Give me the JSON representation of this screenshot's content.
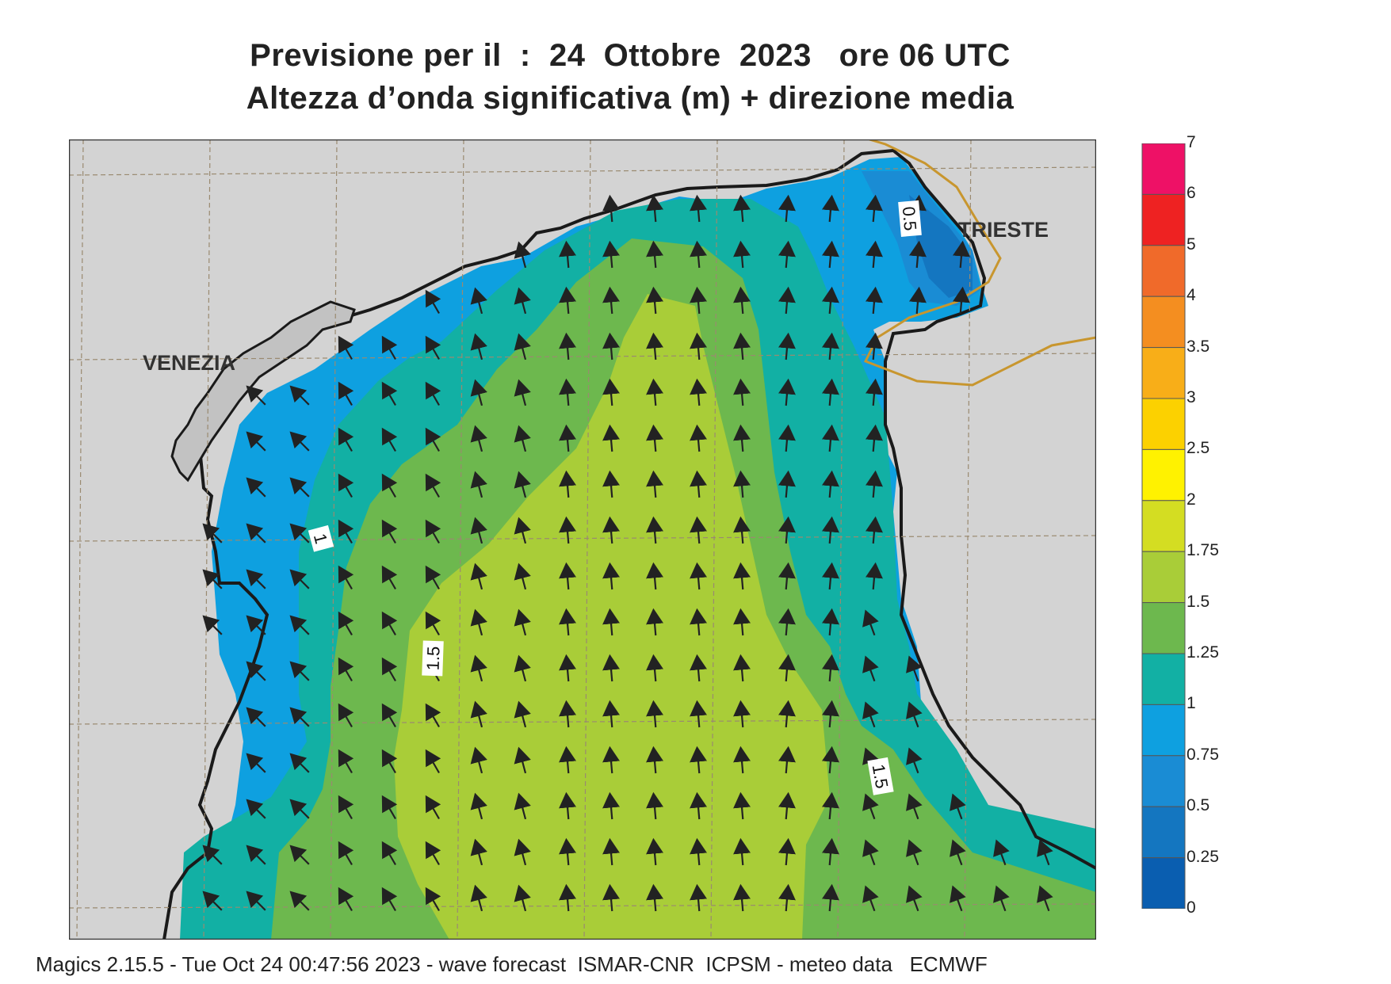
{
  "title": {
    "line1": "Previsione per il  :  24  Ottobre  2023   ore 06 UTC",
    "line2": "Altezza d’onda significativa (m) + direzione media"
  },
  "map": {
    "cities": [
      {
        "name": "VENEZIA"
      },
      {
        "name": "TRIESTE"
      }
    ],
    "contour_labels": [
      "0.5",
      "1",
      "1.5",
      "1.5"
    ],
    "field": "significant wave height (m)",
    "arrows": "mean wave direction"
  },
  "legend": {
    "levels": [
      "7",
      "6",
      "5",
      "4",
      "3.5",
      "3",
      "2.5",
      "2",
      "1.75",
      "1.5",
      "1.25",
      "1",
      "0.75",
      "0.5",
      "0.25",
      "0"
    ],
    "colors": [
      "#ee1166",
      "#ee2222",
      "#f06a2a",
      "#f48e20",
      "#f8ae18",
      "#fcd100",
      "#fff200",
      "#d4dd22",
      "#a9cd38",
      "#6db84e",
      "#12b0a4",
      "#0ea0e0",
      "#1a8cd4",
      "#1476c0",
      "#0a5eb0"
    ]
  },
  "footer": "Magics 2.15.5 - Tue Oct 24 00:47:56 2023 - wave forecast  ISMAR-CNR  ICPSM - meteo data   ECMWF"
}
